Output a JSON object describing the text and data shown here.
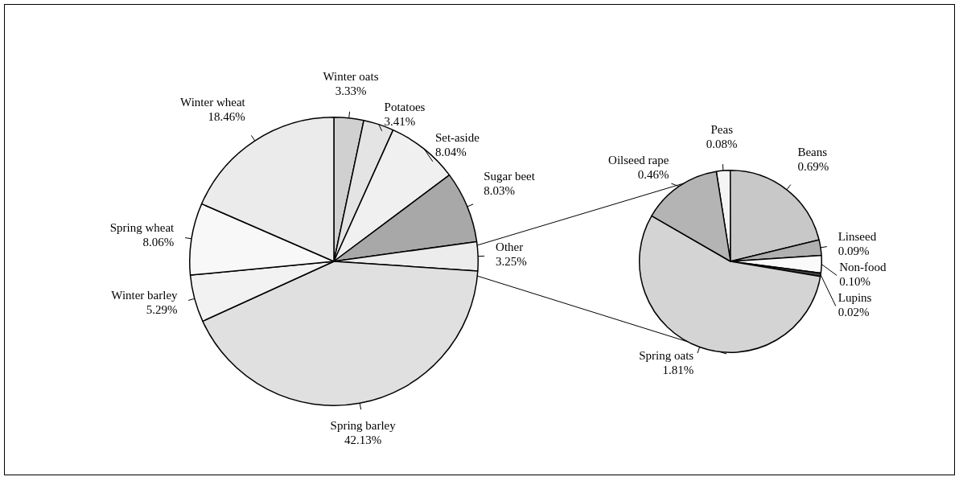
{
  "chart_data": [
    {
      "type": "pie",
      "categories": [
        "Winter oats",
        "Potatoes",
        "Set-aside",
        "Sugar beet",
        "Other",
        "Spring barley",
        "Winter barley",
        "Spring wheat",
        "Winter wheat"
      ],
      "values": [
        3.33,
        3.41,
        8.04,
        8.03,
        3.25,
        42.13,
        5.29,
        8.06,
        18.46
      ],
      "value_labels": [
        "3.33%",
        "3.41%",
        "8.04%",
        "8.03%",
        "3.25%",
        "42.13%",
        "5.29%",
        "8.06%",
        "18.46%"
      ],
      "colors": [
        "#d0d0d0",
        "#e4e4e4",
        "#f0f0f0",
        "#a8a8a8",
        "#ececec",
        "#e0e0e0",
        "#f2f2f2",
        "#f8f8f8",
        "#ebebeb"
      ]
    },
    {
      "type": "pie",
      "categories": [
        "Peas",
        "Beans",
        "Linseed",
        "Non-food",
        "Lupins",
        "Spring oats",
        "Oilseed rape"
      ],
      "values": [
        0.08,
        0.69,
        0.09,
        0.1,
        0.02,
        1.81,
        0.46
      ],
      "value_labels": [
        "0.08%",
        "0.69%",
        "0.09%",
        "0.10%",
        "0.02%",
        "1.81%",
        "0.46%"
      ],
      "colors": [
        "#f4f4f4",
        "#c8c8c8",
        "#b0b0b0",
        "#fafafa",
        "#404040",
        "#d4d4d4",
        "#b4b4b4"
      ]
    }
  ]
}
